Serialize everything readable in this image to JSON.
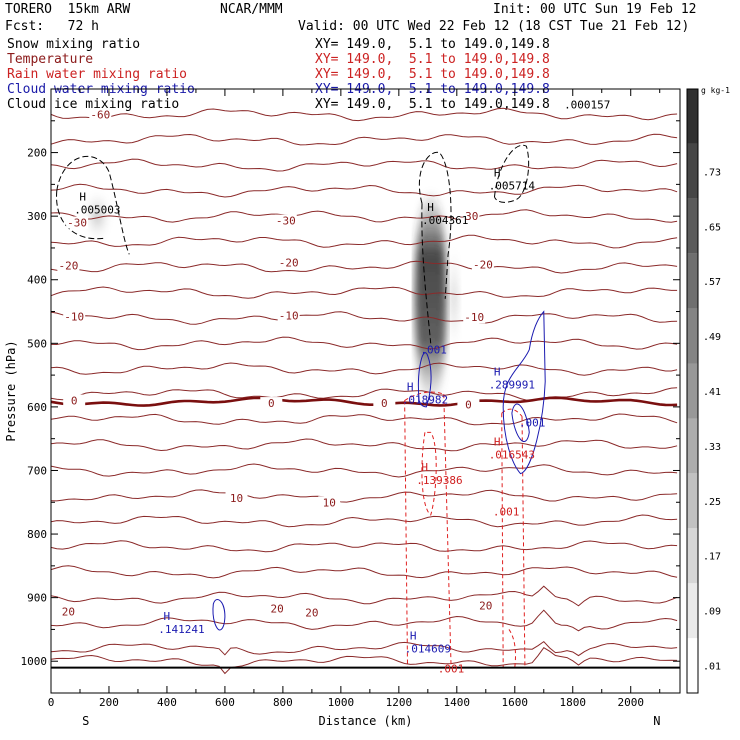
{
  "header": {
    "model": "TORERO  15km ARW",
    "org": "NCAR/MMM",
    "init": "Init: 00 UTC Sun 19 Feb 12",
    "fcst": "Fcst:   72 h",
    "valid": "Valid: 00 UTC Wed 22 Feb 12 (18 CST Tue 21 Feb 12)"
  },
  "legend": [
    {
      "label": "Snow mixing ratio",
      "color": "#000000",
      "xsec": "XY= 149.0,  5.1 to 149.0,149.8"
    },
    {
      "label": "Temperature",
      "color": "#8b1a1a",
      "xsec": "XY= 149.0,  5.1 to 149.0,149.8"
    },
    {
      "label": "Rain water mixing ratio",
      "color": "#cc2222",
      "xsec": "XY= 149.0,  5.1 to 149.0,149.8"
    },
    {
      "label": "Cloud water mixing ratio",
      "color": "#1a1aa8",
      "xsec": "XY= 149.0,  5.1 to 149.0,149.8"
    },
    {
      "label": "Cloud ice mixing ratio",
      "color": "#000000",
      "xsec": "XY= 149.0,  5.1 to 149.0,149.8"
    }
  ],
  "chart_data": {
    "type": "cross-section contour",
    "xlabel": "Distance (km)",
    "ylabel": "Pressure (hPa)",
    "xlim": [
      0,
      2170
    ],
    "ylim": [
      1050,
      100
    ],
    "x_ticks": [
      0,
      200,
      400,
      600,
      800,
      1000,
      1200,
      1400,
      1600,
      1800,
      2000
    ],
    "y_ticks": [
      200,
      300,
      400,
      500,
      600,
      700,
      800,
      900,
      1000
    ],
    "left_end": "S",
    "right_end": "N",
    "colorbar": {
      "unit": "g kg-1",
      "levels": [
        0.01,
        0.09,
        0.17,
        0.25,
        0.33,
        0.41,
        0.49,
        0.57,
        0.65,
        0.73
      ],
      "labels": [
        ".01",
        ".09",
        ".17",
        ".25",
        ".33",
        ".41",
        ".49",
        ".57",
        ".65",
        ".73"
      ]
    },
    "temperature_isotherms": [
      {
        "label": "-60",
        "p": 140
      },
      {
        "label": "-30",
        "p": 315
      },
      {
        "label": "-20",
        "p": 375
      },
      {
        "label": "-10",
        "p": 455
      },
      {
        "label": "0",
        "p": 592
      },
      {
        "label": "10",
        "p": 748
      },
      {
        "label": "20",
        "p": 920
      }
    ],
    "temperature_labels": [
      {
        "text": "-60",
        "x": 170,
        "p": 140
      },
      {
        "text": "-30",
        "x": 90,
        "p": 310
      },
      {
        "text": "-30",
        "x": 810,
        "p": 307
      },
      {
        "text": "-30",
        "x": 1440,
        "p": 300
      },
      {
        "text": "-20",
        "x": 60,
        "p": 378
      },
      {
        "text": "-20",
        "x": 820,
        "p": 373
      },
      {
        "text": "-20",
        "x": 1490,
        "p": 376
      },
      {
        "text": "-10",
        "x": 80,
        "p": 458
      },
      {
        "text": "-10",
        "x": 820,
        "p": 456
      },
      {
        "text": "-10",
        "x": 1460,
        "p": 459
      },
      {
        "text": "0",
        "x": 80,
        "p": 590
      },
      {
        "text": "0",
        "x": 760,
        "p": 594
      },
      {
        "text": "0",
        "x": 1150,
        "p": 594
      },
      {
        "text": "0",
        "x": 1440,
        "p": 596
      },
      {
        "text": "10",
        "x": 640,
        "p": 743
      },
      {
        "text": "10",
        "x": 960,
        "p": 750
      },
      {
        "text": "20",
        "x": 60,
        "p": 922
      },
      {
        "text": "20",
        "x": 780,
        "p": 917
      },
      {
        "text": "20",
        "x": 900,
        "p": 923
      },
      {
        "text": "20",
        "x": 1500,
        "p": 912
      }
    ],
    "extrema_labels": [
      {
        "field": "snow",
        "text": ".005003",
        "x": 160,
        "p": 285
      },
      {
        "field": "snow",
        "text": ".004361",
        "x": 1360,
        "p": 301
      },
      {
        "field": "snow",
        "text": ".005714",
        "x": 1590,
        "p": 247
      },
      {
        "field": "ice",
        "text": ".000157",
        "x": 1850,
        "p": 120
      },
      {
        "field": "cloud",
        "text": ".001",
        "x": 1320,
        "p": 505
      },
      {
        "field": "cloud",
        "text": ".018982",
        "x": 1290,
        "p": 584
      },
      {
        "field": "cloud",
        "text": ".289991",
        "x": 1590,
        "p": 560
      },
      {
        "field": "cloud",
        "text": ".001",
        "x": 1660,
        "p": 620
      },
      {
        "field": "cloud",
        "text": ".141241",
        "x": 450,
        "p": 945
      },
      {
        "field": "cloud",
        "text": ".014609",
        "x": 1300,
        "p": 975
      },
      {
        "field": "rain",
        "text": ".016543",
        "x": 1590,
        "p": 670
      },
      {
        "field": "rain",
        "text": ".139386",
        "x": 1340,
        "p": 710
      },
      {
        "field": "rain",
        "text": ".001",
        "x": 1570,
        "p": 760
      },
      {
        "field": "rain",
        "text": ".001",
        "x": 1380,
        "p": 1007
      }
    ]
  }
}
